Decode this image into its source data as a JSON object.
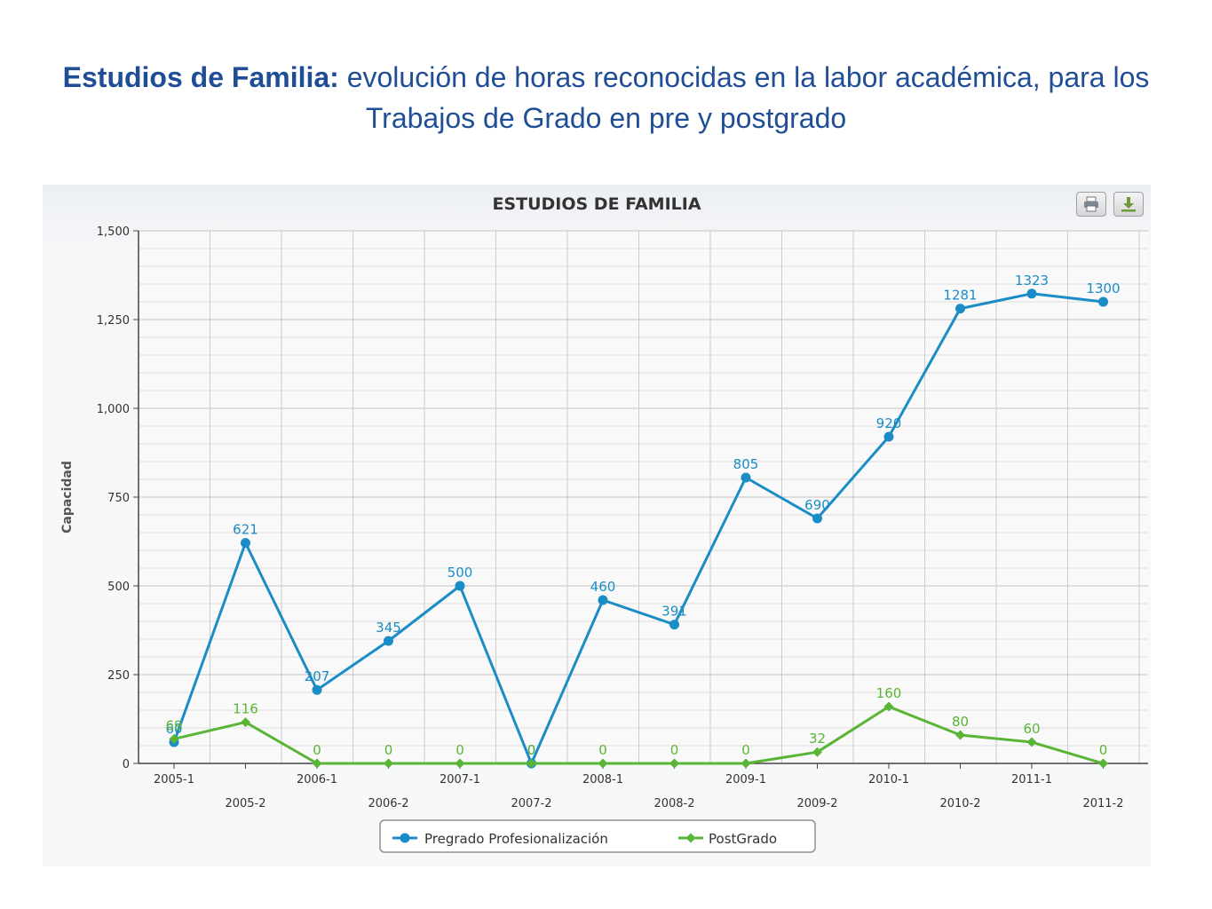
{
  "slide": {
    "title_bold": "Estudios de Familia:",
    "title_rest": " evolución de horas reconocidas en la labor académica, para los Trabajos de Grado en pre y postgrado"
  },
  "toolbar": {
    "print_icon": "printer-icon",
    "download_icon": "download-icon"
  },
  "chart_data": {
    "type": "line",
    "title": "ESTUDIOS DE FAMILIA",
    "xlabel": "",
    "ylabel": "Capacidad",
    "ylim": [
      0,
      1500
    ],
    "yticks": [
      "0",
      "250",
      "500",
      "750",
      "1,000",
      "1,250",
      "1,500"
    ],
    "ytick_values": [
      0,
      250,
      500,
      750,
      1000,
      1250,
      1500
    ],
    "grid": true,
    "legend_position": "bottom-center",
    "categories": [
      "2005-1",
      "2005-2",
      "2006-1",
      "2006-2",
      "2007-1",
      "2007-2",
      "2008-1",
      "2008-2",
      "2009-1",
      "2009-2",
      "2010-1",
      "2010-2",
      "2011-1",
      "2011-2"
    ],
    "series": [
      {
        "name": "Pregrado Profesionalización",
        "color": "#1a8cc6",
        "marker": "circle",
        "values": [
          60,
          621,
          207,
          345,
          500,
          0,
          460,
          391,
          805,
          690,
          920,
          1281,
          1323,
          1300
        ],
        "labels": [
          "60",
          "621",
          "207",
          "345",
          "500",
          "0",
          "460",
          "391",
          "805",
          "690",
          "920",
          "1281",
          "1323",
          "1300"
        ]
      },
      {
        "name": "PostGrado",
        "color": "#5ab435",
        "marker": "diamond",
        "values": [
          69,
          116,
          0,
          0,
          0,
          0,
          0,
          0,
          0,
          32,
          160,
          80,
          60,
          0
        ],
        "labels": [
          "69",
          "116",
          "0",
          "0",
          "0",
          "0",
          "0",
          "0",
          "0",
          "32",
          "160",
          "80",
          "60",
          "0"
        ]
      }
    ]
  }
}
